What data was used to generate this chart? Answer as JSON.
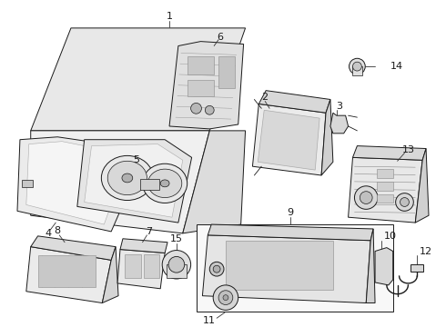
{
  "background_color": "#ffffff",
  "line_color": "#1a1a1a",
  "fill_light": "#f2f2f2",
  "fill_mid": "#e0e0e0",
  "fill_dark": "#c8c8c8",
  "font_size": 8,
  "fig_width": 4.9,
  "fig_height": 3.6,
  "dpi": 100
}
